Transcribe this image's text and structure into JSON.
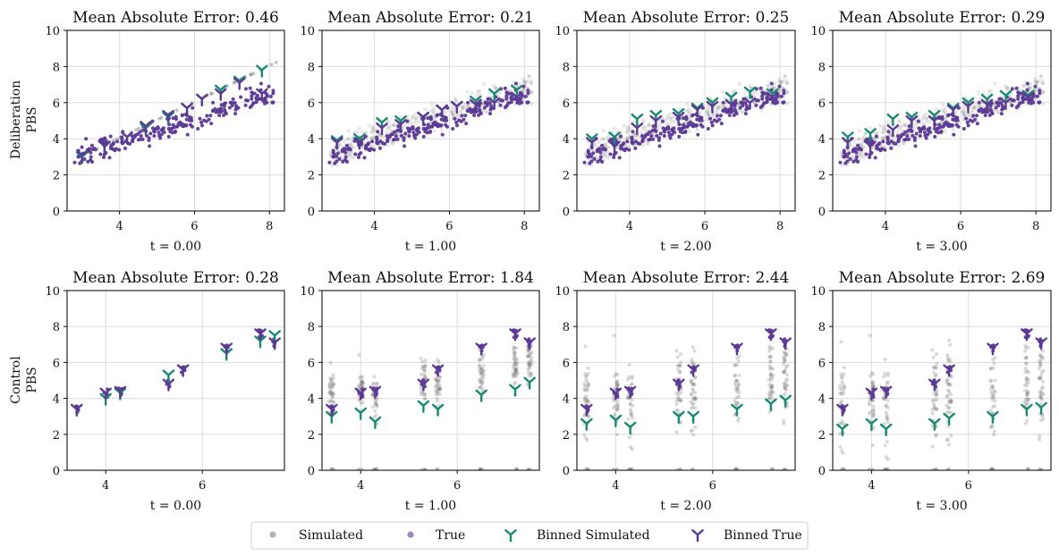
{
  "row_labels": [
    [
      "Deliberation",
      "PBS"
    ],
    [
      "Control",
      "PBS"
    ]
  ],
  "legend": {
    "simulated": "Simulated",
    "true": "True",
    "binned_simulated": "Binned Simulated",
    "binned_true": "Binned True"
  },
  "colors": {
    "simulated": "#7f7f7f",
    "true": "#5b3a94",
    "binned_simulated": "#178a72",
    "binned_true": "#5b3a94",
    "grid": "#dcdcdc"
  },
  "chart_data": [
    {
      "type": "scatter",
      "title": "Mean Absolute Error: 0.46",
      "xlabel": "t = 0.00",
      "ylabel": "",
      "xlim": [
        2.6,
        8.4
      ],
      "ylim": [
        0,
        10
      ],
      "xticks": [
        4,
        6,
        8
      ],
      "yticks": [
        0,
        2,
        4,
        6,
        8,
        10
      ],
      "grid": true,
      "binned_true": [
        [
          3.0,
          3.1
        ],
        [
          3.6,
          3.6
        ],
        [
          4.2,
          4.1
        ],
        [
          4.7,
          4.7
        ],
        [
          5.3,
          5.3
        ],
        [
          5.8,
          5.7
        ],
        [
          6.2,
          6.2
        ],
        [
          6.7,
          6.5
        ],
        [
          7.2,
          7.1
        ],
        [
          7.8,
          6.5
        ]
      ],
      "binned_simulated": [
        [
          3.0,
          3.0
        ],
        [
          3.6,
          3.6
        ],
        [
          4.2,
          4.1
        ],
        [
          4.7,
          4.6
        ],
        [
          5.3,
          5.2
        ],
        [
          5.8,
          5.7
        ],
        [
          6.2,
          6.2
        ],
        [
          6.7,
          6.7
        ],
        [
          7.2,
          7.2
        ],
        [
          7.8,
          7.8
        ]
      ]
    },
    {
      "type": "scatter",
      "title": "Mean Absolute Error: 0.21",
      "xlabel": "t = 1.00",
      "ylabel": "",
      "xlim": [
        2.6,
        8.4
      ],
      "ylim": [
        0,
        10
      ],
      "xticks": [
        4,
        6,
        8
      ],
      "yticks": [
        0,
        2,
        4,
        6,
        8,
        10
      ],
      "grid": true,
      "binned_true": [
        [
          3.0,
          3.8
        ],
        [
          3.6,
          3.8
        ],
        [
          4.2,
          4.6
        ],
        [
          4.7,
          4.8
        ],
        [
          5.3,
          5.2
        ],
        [
          5.8,
          5.6
        ],
        [
          6.2,
          5.8
        ],
        [
          6.7,
          5.9
        ],
        [
          7.2,
          6.0
        ],
        [
          7.8,
          6.3
        ]
      ],
      "binned_simulated": [
        [
          3.0,
          3.9
        ],
        [
          3.6,
          4.0
        ],
        [
          4.2,
          4.9
        ],
        [
          4.7,
          5.0
        ],
        [
          5.3,
          5.2
        ],
        [
          5.8,
          5.6
        ],
        [
          6.2,
          5.8
        ],
        [
          6.7,
          6.1
        ],
        [
          7.2,
          6.5
        ],
        [
          7.8,
          6.7
        ]
      ]
    },
    {
      "type": "scatter",
      "title": "Mean Absolute Error: 0.25",
      "xlabel": "t = 2.00",
      "ylabel": "",
      "xlim": [
        2.6,
        8.4
      ],
      "ylim": [
        0,
        10
      ],
      "xticks": [
        4,
        6,
        8
      ],
      "yticks": [
        0,
        2,
        4,
        6,
        8,
        10
      ],
      "grid": true,
      "binned_true": [
        [
          3.0,
          3.8
        ],
        [
          3.6,
          3.6
        ],
        [
          4.2,
          4.6
        ],
        [
          4.7,
          5.0
        ],
        [
          5.3,
          5.2
        ],
        [
          5.8,
          5.6
        ],
        [
          6.2,
          5.8
        ],
        [
          6.7,
          5.9
        ],
        [
          7.2,
          6.0
        ],
        [
          7.8,
          6.3
        ]
      ],
      "binned_simulated": [
        [
          3.0,
          4.0
        ],
        [
          3.6,
          4.1
        ],
        [
          4.2,
          5.1
        ],
        [
          4.7,
          5.3
        ],
        [
          5.3,
          5.4
        ],
        [
          5.8,
          5.7
        ],
        [
          6.2,
          6.0
        ],
        [
          6.7,
          6.3
        ],
        [
          7.2,
          6.6
        ],
        [
          7.8,
          6.5
        ]
      ]
    },
    {
      "type": "scatter",
      "title": "Mean Absolute Error: 0.29",
      "xlabel": "t = 3.00",
      "ylabel": "",
      "xlim": [
        2.6,
        8.4
      ],
      "ylim": [
        0,
        10
      ],
      "xticks": [
        4,
        6,
        8
      ],
      "yticks": [
        0,
        2,
        4,
        6,
        8,
        10
      ],
      "grid": true,
      "binned_true": [
        [
          3.0,
          3.8
        ],
        [
          3.6,
          3.6
        ],
        [
          4.2,
          4.5
        ],
        [
          4.7,
          5.0
        ],
        [
          5.3,
          5.0
        ],
        [
          5.8,
          5.6
        ],
        [
          6.2,
          5.8
        ],
        [
          6.7,
          5.9
        ],
        [
          7.2,
          6.0
        ],
        [
          7.8,
          6.3
        ]
      ],
      "binned_simulated": [
        [
          3.0,
          4.1
        ],
        [
          3.6,
          4.3
        ],
        [
          4.2,
          5.1
        ],
        [
          4.7,
          5.2
        ],
        [
          5.3,
          5.3
        ],
        [
          5.8,
          5.7
        ],
        [
          6.2,
          6.0
        ],
        [
          6.7,
          6.2
        ],
        [
          7.2,
          6.4
        ],
        [
          7.8,
          6.4
        ]
      ]
    },
    {
      "type": "scatter",
      "title": "Mean Absolute Error: 0.28",
      "xlabel": "t = 0.00",
      "ylabel": "",
      "xlim": [
        3.2,
        7.7
      ],
      "ylim": [
        0,
        10
      ],
      "xticks": [
        4,
        6
      ],
      "yticks": [
        0,
        2,
        4,
        6,
        8,
        10
      ],
      "grid": true,
      "binned_true": [
        [
          3.4,
          3.4
        ],
        [
          4.0,
          4.3
        ],
        [
          4.3,
          4.4
        ],
        [
          5.3,
          4.8
        ],
        [
          5.6,
          5.6
        ],
        [
          6.5,
          6.8
        ],
        [
          7.2,
          7.6
        ],
        [
          7.5,
          7.1
        ]
      ],
      "binned_simulated": [
        [
          3.4,
          3.4
        ],
        [
          4.0,
          4.0
        ],
        [
          4.3,
          4.3
        ],
        [
          5.3,
          5.3
        ],
        [
          5.6,
          5.6
        ],
        [
          6.5,
          6.5
        ],
        [
          7.2,
          7.2
        ],
        [
          7.5,
          7.5
        ]
      ]
    },
    {
      "type": "scatter",
      "title": "Mean Absolute Error: 1.84",
      "xlabel": "t = 1.00",
      "ylabel": "",
      "xlim": [
        3.2,
        7.7
      ],
      "ylim": [
        0,
        10
      ],
      "xticks": [
        4,
        6
      ],
      "yticks": [
        0,
        2,
        4,
        6,
        8,
        10
      ],
      "grid": true,
      "binned_true": [
        [
          3.4,
          3.4
        ],
        [
          4.0,
          4.3
        ],
        [
          4.3,
          4.4
        ],
        [
          5.3,
          4.8
        ],
        [
          5.6,
          5.6
        ],
        [
          6.5,
          6.8
        ],
        [
          7.2,
          7.6
        ],
        [
          7.5,
          7.1
        ]
      ],
      "binned_simulated": [
        [
          3.4,
          3.0
        ],
        [
          4.0,
          3.2
        ],
        [
          4.3,
          2.7
        ],
        [
          5.3,
          3.6
        ],
        [
          5.6,
          3.4
        ],
        [
          6.5,
          4.2
        ],
        [
          7.2,
          4.5
        ],
        [
          7.5,
          4.9
        ]
      ]
    },
    {
      "type": "scatter",
      "title": "Mean Absolute Error: 2.44",
      "xlabel": "t = 2.00",
      "ylabel": "",
      "xlim": [
        3.2,
        7.7
      ],
      "ylim": [
        0,
        10
      ],
      "xticks": [
        4,
        6
      ],
      "yticks": [
        0,
        2,
        4,
        6,
        8,
        10
      ],
      "grid": true,
      "binned_true": [
        [
          3.4,
          3.4
        ],
        [
          4.0,
          4.3
        ],
        [
          4.3,
          4.4
        ],
        [
          5.3,
          4.8
        ],
        [
          5.6,
          5.6
        ],
        [
          6.5,
          6.8
        ],
        [
          7.2,
          7.6
        ],
        [
          7.5,
          7.1
        ]
      ],
      "binned_simulated": [
        [
          3.4,
          2.6
        ],
        [
          4.0,
          2.8
        ],
        [
          4.3,
          2.4
        ],
        [
          5.3,
          3.0
        ],
        [
          5.6,
          3.0
        ],
        [
          6.5,
          3.4
        ],
        [
          7.2,
          3.7
        ],
        [
          7.5,
          3.9
        ]
      ]
    },
    {
      "type": "scatter",
      "title": "Mean Absolute Error: 2.69",
      "xlabel": "t = 3.00",
      "ylabel": "",
      "xlim": [
        3.2,
        7.7
      ],
      "ylim": [
        0,
        10
      ],
      "xticks": [
        4,
        6
      ],
      "yticks": [
        0,
        2,
        4,
        6,
        8,
        10
      ],
      "grid": true,
      "binned_true": [
        [
          3.4,
          3.4
        ],
        [
          4.0,
          4.3
        ],
        [
          4.3,
          4.4
        ],
        [
          5.3,
          4.8
        ],
        [
          5.6,
          5.6
        ],
        [
          6.5,
          6.8
        ],
        [
          7.2,
          7.6
        ],
        [
          7.5,
          7.1
        ]
      ],
      "binned_simulated": [
        [
          3.4,
          2.3
        ],
        [
          4.0,
          2.6
        ],
        [
          4.3,
          2.3
        ],
        [
          5.3,
          2.6
        ],
        [
          5.6,
          2.9
        ],
        [
          6.5,
          3.0
        ],
        [
          7.2,
          3.4
        ],
        [
          7.5,
          3.5
        ]
      ]
    }
  ]
}
